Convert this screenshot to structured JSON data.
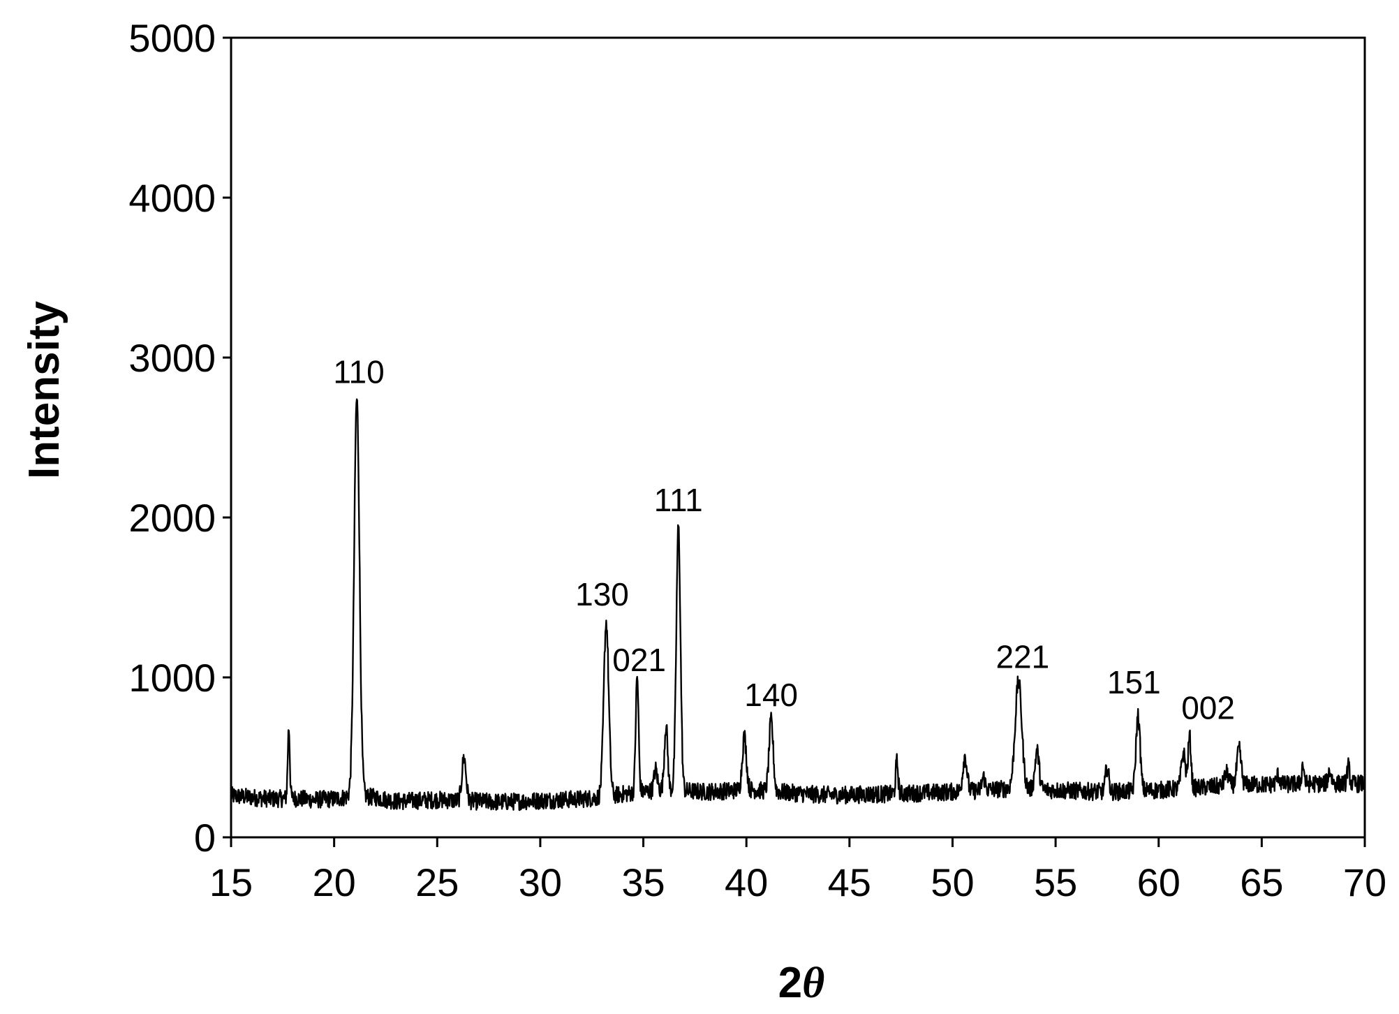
{
  "chart_data": {
    "type": "line",
    "title": "",
    "xlabel_prefix": "2",
    "xlabel_symbol": "θ",
    "ylabel": "Intensity",
    "xlim": [
      15,
      70
    ],
    "ylim": [
      0,
      5000
    ],
    "x_ticks": [
      15,
      20,
      25,
      30,
      35,
      40,
      45,
      50,
      55,
      60,
      65,
      70
    ],
    "y_ticks": [
      0,
      1000,
      2000,
      3000,
      4000,
      5000
    ],
    "grid": false,
    "legend": "none",
    "line_color": "#000000",
    "baseline": [
      [
        15,
        260
      ],
      [
        16,
        250
      ],
      [
        17,
        240
      ],
      [
        18,
        245
      ],
      [
        19,
        235
      ],
      [
        20,
        240
      ],
      [
        21,
        260
      ],
      [
        22,
        250
      ],
      [
        23,
        225
      ],
      [
        24,
        230
      ],
      [
        25,
        235
      ],
      [
        26,
        230
      ],
      [
        27,
        225
      ],
      [
        28,
        220
      ],
      [
        29,
        225
      ],
      [
        30,
        230
      ],
      [
        31,
        235
      ],
      [
        32,
        240
      ],
      [
        33,
        250
      ],
      [
        34,
        270
      ],
      [
        35,
        285
      ],
      [
        36,
        300
      ],
      [
        37,
        290
      ],
      [
        38,
        285
      ],
      [
        39,
        290
      ],
      [
        40,
        300
      ],
      [
        41,
        290
      ],
      [
        42,
        280
      ],
      [
        43,
        270
      ],
      [
        44,
        265
      ],
      [
        45,
        265
      ],
      [
        46,
        270
      ],
      [
        47,
        270
      ],
      [
        48,
        275
      ],
      [
        49,
        280
      ],
      [
        50,
        285
      ],
      [
        51,
        290
      ],
      [
        52,
        300
      ],
      [
        53,
        305
      ],
      [
        54,
        300
      ],
      [
        55,
        295
      ],
      [
        56,
        290
      ],
      [
        57,
        285
      ],
      [
        58,
        285
      ],
      [
        59,
        290
      ],
      [
        60,
        295
      ],
      [
        61,
        305
      ],
      [
        62,
        310
      ],
      [
        63,
        320
      ],
      [
        64,
        330
      ],
      [
        65,
        330
      ],
      [
        66,
        330
      ],
      [
        67,
        335
      ],
      [
        68,
        335
      ],
      [
        69,
        335
      ],
      [
        70,
        335
      ]
    ],
    "peaks": [
      {
        "x": 17.8,
        "height": 440,
        "width": 0.05
      },
      {
        "x": 21.1,
        "height": 2480,
        "width": 0.13
      },
      {
        "x": 26.3,
        "height": 270,
        "width": 0.1
      },
      {
        "x": 33.2,
        "height": 1090,
        "width": 0.12
      },
      {
        "x": 34.7,
        "height": 720,
        "width": 0.07
      },
      {
        "x": 35.6,
        "height": 130,
        "width": 0.08
      },
      {
        "x": 36.1,
        "height": 400,
        "width": 0.08
      },
      {
        "x": 36.7,
        "height": 1650,
        "width": 0.1
      },
      {
        "x": 39.9,
        "height": 330,
        "width": 0.1
      },
      {
        "x": 41.2,
        "height": 440,
        "width": 0.1
      },
      {
        "x": 47.3,
        "height": 200,
        "width": 0.06
      },
      {
        "x": 50.6,
        "height": 220,
        "width": 0.1
      },
      {
        "x": 51.5,
        "height": 80,
        "width": 0.08
      },
      {
        "x": 53.2,
        "height": 670,
        "width": 0.16
      },
      {
        "x": 54.1,
        "height": 240,
        "width": 0.1
      },
      {
        "x": 57.5,
        "height": 150,
        "width": 0.08
      },
      {
        "x": 59.0,
        "height": 470,
        "width": 0.1
      },
      {
        "x": 61.2,
        "height": 220,
        "width": 0.1
      },
      {
        "x": 61.5,
        "height": 320,
        "width": 0.07
      },
      {
        "x": 63.3,
        "height": 80,
        "width": 0.1
      },
      {
        "x": 63.9,
        "height": 220,
        "width": 0.1
      },
      {
        "x": 65.8,
        "height": 60,
        "width": 0.08
      },
      {
        "x": 67.0,
        "height": 120,
        "width": 0.06
      },
      {
        "x": 68.3,
        "height": 80,
        "width": 0.08
      },
      {
        "x": 69.2,
        "height": 110,
        "width": 0.06
      }
    ],
    "noise_amplitude": 55,
    "annotations": [
      {
        "text": "110",
        "x": 21.2,
        "y": 2840
      },
      {
        "text": "130",
        "x": 33.0,
        "y": 1450
      },
      {
        "text": "021",
        "x": 34.8,
        "y": 1040
      },
      {
        "text": "111",
        "x": 36.7,
        "y": 2040
      },
      {
        "text": "140",
        "x": 41.2,
        "y": 820
      },
      {
        "text": "221",
        "x": 53.4,
        "y": 1060
      },
      {
        "text": "151",
        "x": 58.8,
        "y": 900
      },
      {
        "text": "002",
        "x": 62.4,
        "y": 740
      }
    ]
  }
}
